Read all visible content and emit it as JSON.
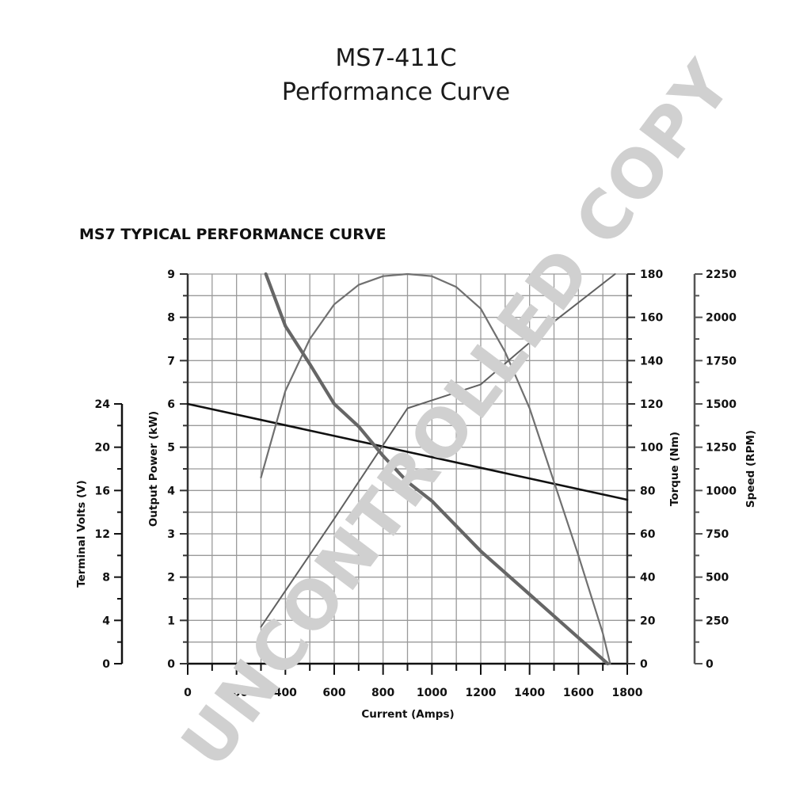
{
  "page": {
    "title_line1": "MS7-411C",
    "title_line2": "Performance Curve",
    "watermark": "UNCONTROLLED COPY"
  },
  "chart_data": {
    "type": "line",
    "subtitle": "MS7 TYPICAL PERFORMANCE CURVE",
    "xlabel": "Current (Amps)",
    "xlim": [
      0,
      1800
    ],
    "x_ticks": [
      0,
      200,
      400,
      600,
      800,
      1000,
      1200,
      1400,
      1600,
      1800
    ],
    "x_tick_labels": [
      "0",
      "200",
      "400",
      "600",
      "800",
      "1000",
      "1200",
      "1400",
      "1600",
      "1800"
    ],
    "grid": true,
    "axes": {
      "power": {
        "label": "Output Power (kW)",
        "lim": [
          0,
          9
        ],
        "ticks": [
          0,
          1,
          2,
          3,
          4,
          5,
          6,
          7,
          8,
          9
        ],
        "side": "left"
      },
      "volts": {
        "label": "Terminal Volts (V)",
        "lim": [
          0,
          24
        ],
        "ticks": [
          0,
          4,
          8,
          12,
          16,
          20,
          24
        ],
        "side": "left-outer"
      },
      "torque": {
        "label": "Torque (Nm)",
        "lim": [
          0,
          180
        ],
        "ticks": [
          0,
          20,
          40,
          60,
          80,
          100,
          120,
          140,
          160,
          180
        ],
        "side": "right"
      },
      "speed": {
        "label": "Speed (RPM)",
        "lim": [
          0,
          2250
        ],
        "ticks": [
          0,
          250,
          500,
          750,
          1000,
          1250,
          1500,
          1750,
          2000,
          2250
        ],
        "side": "right-outer"
      }
    },
    "series": [
      {
        "axis": "volts",
        "color": "#111111",
        "x": [
          0,
          1800
        ],
        "y": [
          16,
          10.1
        ]
      },
      {
        "axis": "power",
        "color": "#707070",
        "x": [
          300,
          400,
          500,
          600,
          700,
          800,
          900,
          1000,
          1100,
          1200,
          1300,
          1400,
          1500,
          1600,
          1700,
          1730
        ],
        "y": [
          4.3,
          6.3,
          7.5,
          8.3,
          8.75,
          8.95,
          9.0,
          8.95,
          8.7,
          8.2,
          7.2,
          5.9,
          4.2,
          2.5,
          0.7,
          0
        ]
      },
      {
        "axis": "torque",
        "color": "#606060",
        "x": [
          300,
          600,
          900,
          1200,
          1500,
          1750
        ],
        "y": [
          17,
          67,
          118,
          129,
          158,
          180
        ]
      },
      {
        "axis": "speed",
        "color": "#666666",
        "x": [
          320,
          400,
          500,
          600,
          700,
          800,
          900,
          1000,
          1200,
          1400,
          1600,
          1720
        ],
        "y": [
          2250,
          1950,
          1730,
          1500,
          1370,
          1200,
          1050,
          940,
          650,
          400,
          150,
          0
        ]
      }
    ]
  }
}
